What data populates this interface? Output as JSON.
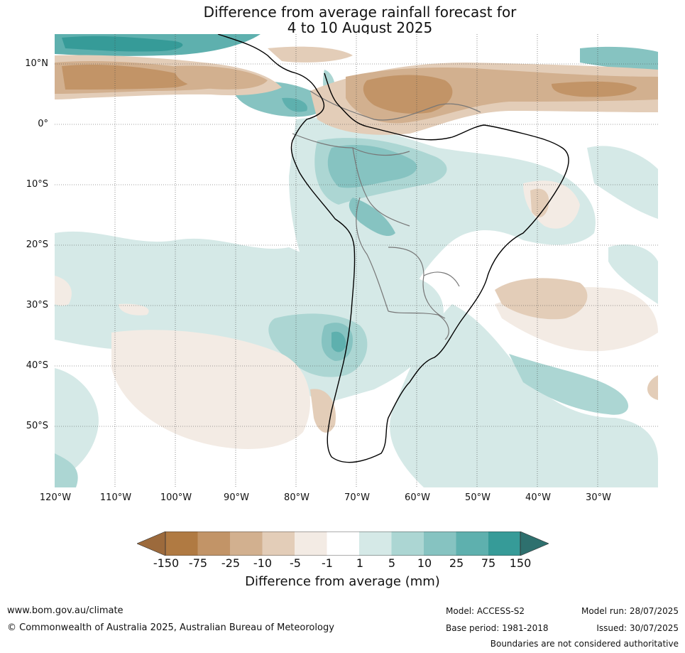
{
  "title": {
    "line1": "Difference from average rainfall forecast for",
    "line2": "4 to 10 August 2025"
  },
  "map": {
    "region": "South America",
    "latitude_labels": [
      "10°N",
      "0°",
      "10°S",
      "20°S",
      "30°S",
      "40°S",
      "50°S"
    ],
    "longitude_labels": [
      "120°W",
      "110°W",
      "100°W",
      "90°W",
      "80°W",
      "70°W",
      "60°W",
      "50°W",
      "40°W",
      "30°W"
    ],
    "colors": {
      "dry_150": "#9c6a3c",
      "dry_75": "#b07a42",
      "dry_25": "#c29467",
      "dry_10": "#d2b08f",
      "dry_5": "#e3cdb8",
      "dry_1": "#f3ebe4",
      "neutral": "#ffffff",
      "wet_1": "#d5e9e7",
      "wet_5": "#acd6d3",
      "wet_10": "#86c3c1",
      "wet_25": "#5eb0ae",
      "wet_75": "#369b98",
      "wet_150": "#2e706e",
      "land_outline": "#000000",
      "borders": "#777777"
    }
  },
  "legend": {
    "ticks": [
      "-150",
      "-75",
      "-25",
      "-10",
      "-5",
      "-1",
      "1",
      "5",
      "10",
      "25",
      "75",
      "150"
    ],
    "title": "Difference from average (mm)"
  },
  "footer": {
    "website": "www.bom.gov.au/climate",
    "copyright": "© Commonwealth of Australia 2025, Australian Bureau of Meteorology",
    "model": "Model: ACCESS-S2",
    "base_period": "Base period: 1981-2018",
    "model_run": "Model run: 28/07/2025",
    "issued": "Issued: 30/07/2025",
    "disclaimer": "Boundaries are not considered authoritative"
  }
}
